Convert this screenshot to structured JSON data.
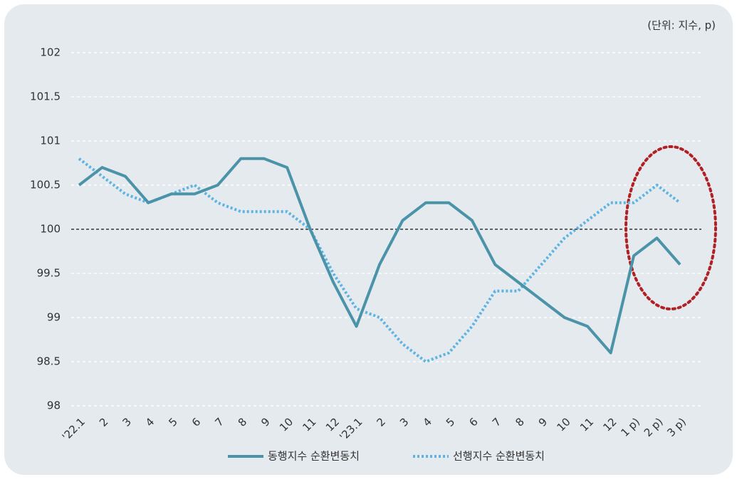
{
  "chart_data": {
    "type": "line",
    "unit_label": "(단위: 지수, p)",
    "categories": [
      "'22.1",
      "2",
      "3",
      "4",
      "5",
      "6",
      "7",
      "8",
      "9",
      "10",
      "11",
      "12",
      "'23.1",
      "2",
      "3",
      "4",
      "5",
      "6",
      "7",
      "8",
      "9",
      "10",
      "11",
      "12",
      "1 p)",
      "2 p)",
      "3 p)"
    ],
    "series": [
      {
        "name": "동행지수 순환변동치",
        "color": "#4a93a8",
        "style": "solid",
        "values": [
          100.5,
          100.7,
          100.6,
          100.3,
          100.4,
          100.4,
          100.5,
          100.8,
          100.8,
          100.7,
          100.0,
          99.4,
          98.9,
          99.6,
          100.1,
          100.3,
          100.3,
          100.1,
          99.6,
          99.4,
          99.2,
          99.0,
          98.9,
          98.6,
          99.7,
          99.9,
          99.6
        ]
      },
      {
        "name": "선행지수 순환변동치",
        "color": "#5cb3e4",
        "style": "dotted",
        "values": [
          100.8,
          100.6,
          100.4,
          100.3,
          100.4,
          100.5,
          100.3,
          100.2,
          100.2,
          100.2,
          100.0,
          99.5,
          99.1,
          99.0,
          98.7,
          98.5,
          98.6,
          98.9,
          99.3,
          99.3,
          99.6,
          99.9,
          100.1,
          100.3,
          100.3,
          100.5,
          100.3
        ]
      }
    ],
    "ylim": [
      98,
      102
    ],
    "yticks": [
      98,
      98.5,
      99,
      99.5,
      100,
      100.5,
      101,
      101.5,
      102
    ],
    "baseline": 100,
    "grid": true
  }
}
